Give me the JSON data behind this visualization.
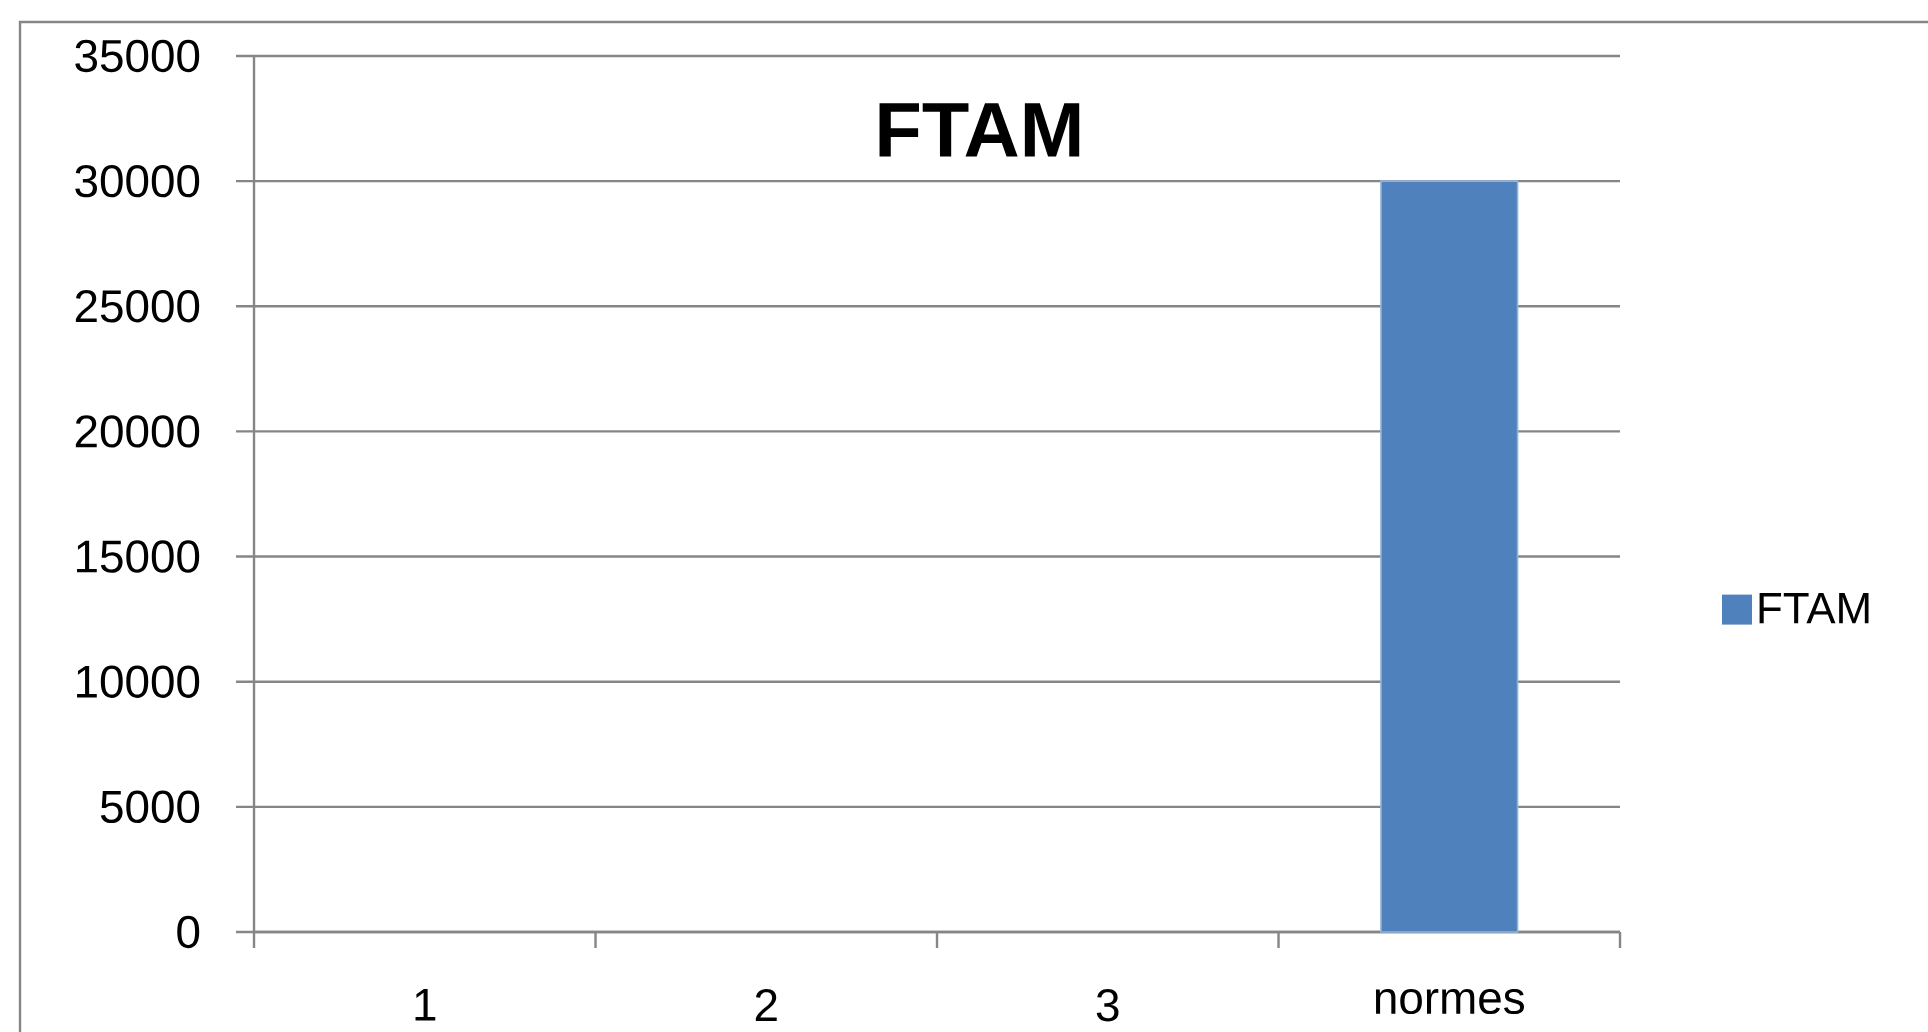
{
  "chart_data": {
    "type": "bar",
    "title": "FTAM",
    "categories": [
      "1",
      "2",
      "3",
      "normes"
    ],
    "series": [
      {
        "name": "FTAM",
        "color": "#4f81bd",
        "values": [
          null,
          null,
          null,
          30000
        ]
      }
    ],
    "ylim": [
      0,
      35000
    ],
    "yticks": [
      0,
      5000,
      10000,
      15000,
      20000,
      25000,
      30000,
      35000
    ],
    "grid": "y",
    "legend": "right"
  }
}
